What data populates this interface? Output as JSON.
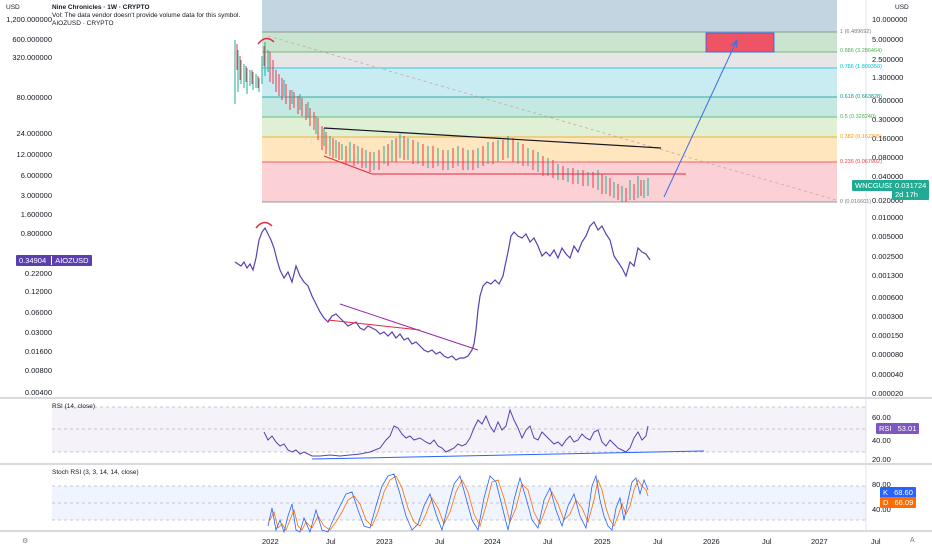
{
  "header": {
    "title_line": "Nine Chronicles · 1W · CRYPTO",
    "vol_line": "Vol: The data vendor doesn't provide volume data for this symbol.",
    "compare_line": "AIOZUSD · CRYPTO",
    "left_currency": "USD",
    "right_currency": "USD"
  },
  "left_axis": [
    "1,200.000000",
    "600.000000",
    "320.000000",
    "80.000000",
    "24.000000",
    "12.000000",
    "6.000000",
    "3.000000",
    "1.600000",
    "0.800000",
    "0.22000",
    "0.12000",
    "0.06000",
    "0.03000",
    "0.01600",
    "0.00800",
    "0.00400"
  ],
  "right_axis": [
    "10.000000",
    "5.000000",
    "2.500000",
    "1.300000",
    "0.600000",
    "0.300000",
    "0.160000",
    "0.080000",
    "0.040000",
    "0.020000",
    "0.010000",
    "0.005000",
    "0.002500",
    "0.001300",
    "0.000600",
    "0.000300",
    "0.000150",
    "0.000080",
    "0.000040",
    "0.000020"
  ],
  "fib_levels": [
    {
      "label": "1 (6.489692)",
      "color": "#787b86"
    },
    {
      "label": "0.886 (3.286464)",
      "color": "#4caf50"
    },
    {
      "label": "0.786 (1.809350)",
      "color": "#00bcd4"
    },
    {
      "label": "0.618 (0.663828)",
      "color": "#009688"
    },
    {
      "label": "0.5 (0.328240)",
      "color": "#4caf50"
    },
    {
      "label": "0.382 (0.162305)",
      "color": "#ff9800"
    },
    {
      "label": "0.236 (0.067902)",
      "color": "#f23645"
    },
    {
      "label": "0 (0.016601)",
      "color": "#787b86"
    }
  ],
  "symbols": {
    "main_tag": "WNCGUSD",
    "main_price": "0.031724",
    "main_countdown": "2d 17h",
    "main_color": "#22ab94",
    "compare_price": "0.34904",
    "compare_tag": "AIOZUSD",
    "compare_color": "#5b3fb0"
  },
  "rsi": {
    "label": "RSI (14, close)",
    "axis": [
      "60.00",
      "40.00",
      "20.00"
    ],
    "tag": "RSI",
    "value": "53.01"
  },
  "stoch": {
    "label": "Stoch RSI (3, 3, 14, 14, close)",
    "axis": [
      "80.00",
      "40.00"
    ],
    "k_tag": "K",
    "k_value": "68.60",
    "d_tag": "D",
    "d_value": "66.09"
  },
  "time_axis": [
    "2022",
    "Jul",
    "2023",
    "Jul",
    "2024",
    "Jul",
    "2025",
    "Jul",
    "2026",
    "Jul",
    "2027",
    "Jul"
  ],
  "corner_icons": {
    "left": "settings-icon",
    "right": "auto-scale-icon"
  }
}
